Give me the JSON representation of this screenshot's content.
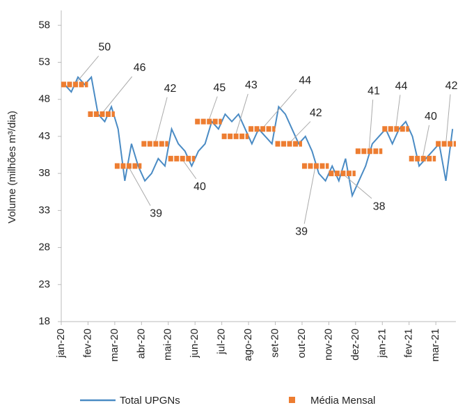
{
  "chart_data": {
    "type": "line",
    "y_label": "Volume (milhões m³/dia)",
    "categories": [
      "jan-20",
      null,
      null,
      null,
      "fev-20",
      null,
      null,
      null,
      "mar-20",
      null,
      null,
      null,
      "abr-20",
      null,
      null,
      null,
      "mai-20",
      null,
      null,
      null,
      "jun-20",
      null,
      null,
      null,
      "jul-20",
      null,
      null,
      null,
      "ago-20",
      null,
      null,
      null,
      "set-20",
      null,
      null,
      null,
      "out-20",
      null,
      null,
      null,
      "nov-20",
      null,
      null,
      null,
      "dez-20",
      null,
      null,
      null,
      "jan-21",
      null,
      null,
      null,
      "fev-21",
      null,
      null,
      null,
      "mar-21",
      null,
      null
    ],
    "series": [
      {
        "name": "Total UPGNs",
        "color": "#4a8bc4",
        "values": [
          50,
          49,
          51,
          50,
          51,
          46,
          45,
          47,
          44,
          37,
          42,
          39,
          37,
          38,
          40,
          39,
          44,
          42,
          41,
          39,
          41,
          42,
          45,
          44,
          46,
          45,
          46,
          44,
          42,
          44,
          43,
          42,
          47,
          46,
          44,
          42,
          43,
          41,
          38,
          37,
          39,
          37,
          40,
          35,
          37,
          39,
          42,
          43,
          44,
          42,
          44,
          45,
          43,
          39,
          40,
          41,
          42,
          37,
          44
        ]
      },
      {
        "name": "Média Mensal",
        "color": "#ed7d31",
        "values": [
          50,
          null,
          null,
          null,
          46,
          null,
          null,
          null,
          39,
          null,
          null,
          null,
          42,
          null,
          null,
          null,
          40,
          null,
          null,
          null,
          45,
          null,
          null,
          null,
          43,
          null,
          null,
          null,
          44,
          null,
          null,
          null,
          42,
          null,
          null,
          null,
          39,
          null,
          null,
          null,
          38,
          null,
          null,
          null,
          41,
          null,
          null,
          null,
          44,
          null,
          null,
          null,
          40,
          null,
          null,
          null,
          42,
          null,
          null
        ]
      }
    ],
    "ylim": [
      18,
      60
    ],
    "yticks": [
      18,
      23,
      28,
      33,
      38,
      43,
      48,
      53,
      58
    ],
    "grid": false
  }
}
